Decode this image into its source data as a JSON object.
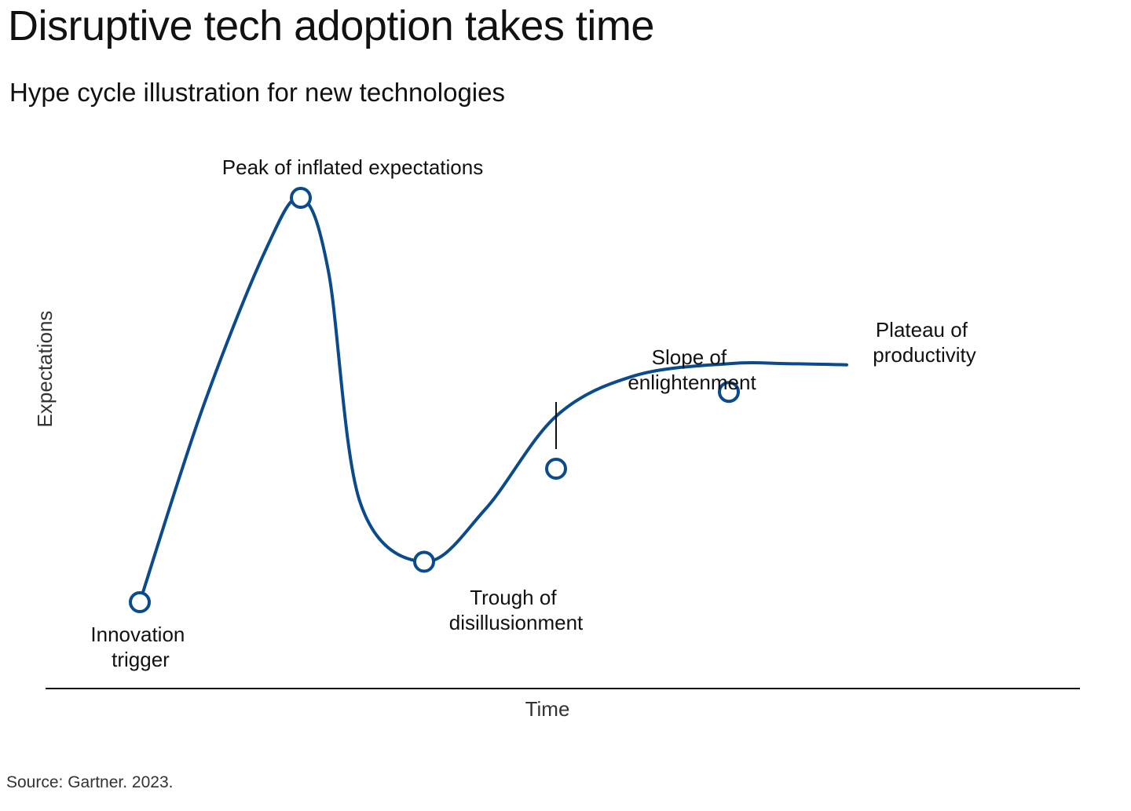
{
  "header": {
    "title": "Disruptive tech adoption takes time",
    "subtitle": "Hype cycle illustration for new technologies"
  },
  "footer": {
    "source": "Source: Gartner. 2023."
  },
  "colors": {
    "curve": "#0b4a8b",
    "marker_fill": "#ffffff",
    "axis": "#111111"
  },
  "chart_data": {
    "type": "line",
    "title": "Disruptive tech adoption takes time",
    "subtitle": "Hype cycle illustration for new technologies",
    "xlabel": "Time",
    "ylabel": "Expectations",
    "grid": false,
    "x_axis_ticks": false,
    "y_axis_ticks": false,
    "xlim": [
      0,
      100
    ],
    "ylim": [
      0,
      100
    ],
    "curve": {
      "x": [
        0,
        8,
        16,
        20.5,
        24,
        28,
        36.2,
        44,
        53,
        63,
        75,
        82.5,
        90
      ],
      "y": [
        0,
        48,
        87,
        100,
        82,
        25,
        10,
        23,
        46,
        56,
        59,
        59,
        58.7
      ]
    },
    "phases": [
      {
        "name": "trigger",
        "label_lines": [
          "Innovation",
          "trigger"
        ],
        "x": 0,
        "y": 0
      },
      {
        "name": "peak",
        "label_lines": [
          "Peak of inflated expectations"
        ],
        "x": 20.5,
        "y": 100
      },
      {
        "name": "trough",
        "label_lines": [
          "Trough of",
          "disillusionment"
        ],
        "x": 36.2,
        "y": 10
      },
      {
        "name": "slope",
        "label_lines": [
          "Slope of",
          "enlightenment"
        ],
        "x": 53,
        "y": 33
      },
      {
        "name": "plateau",
        "label_lines": [
          "Plateau of",
          "productivity"
        ],
        "x": 75,
        "y": 52
      }
    ]
  }
}
